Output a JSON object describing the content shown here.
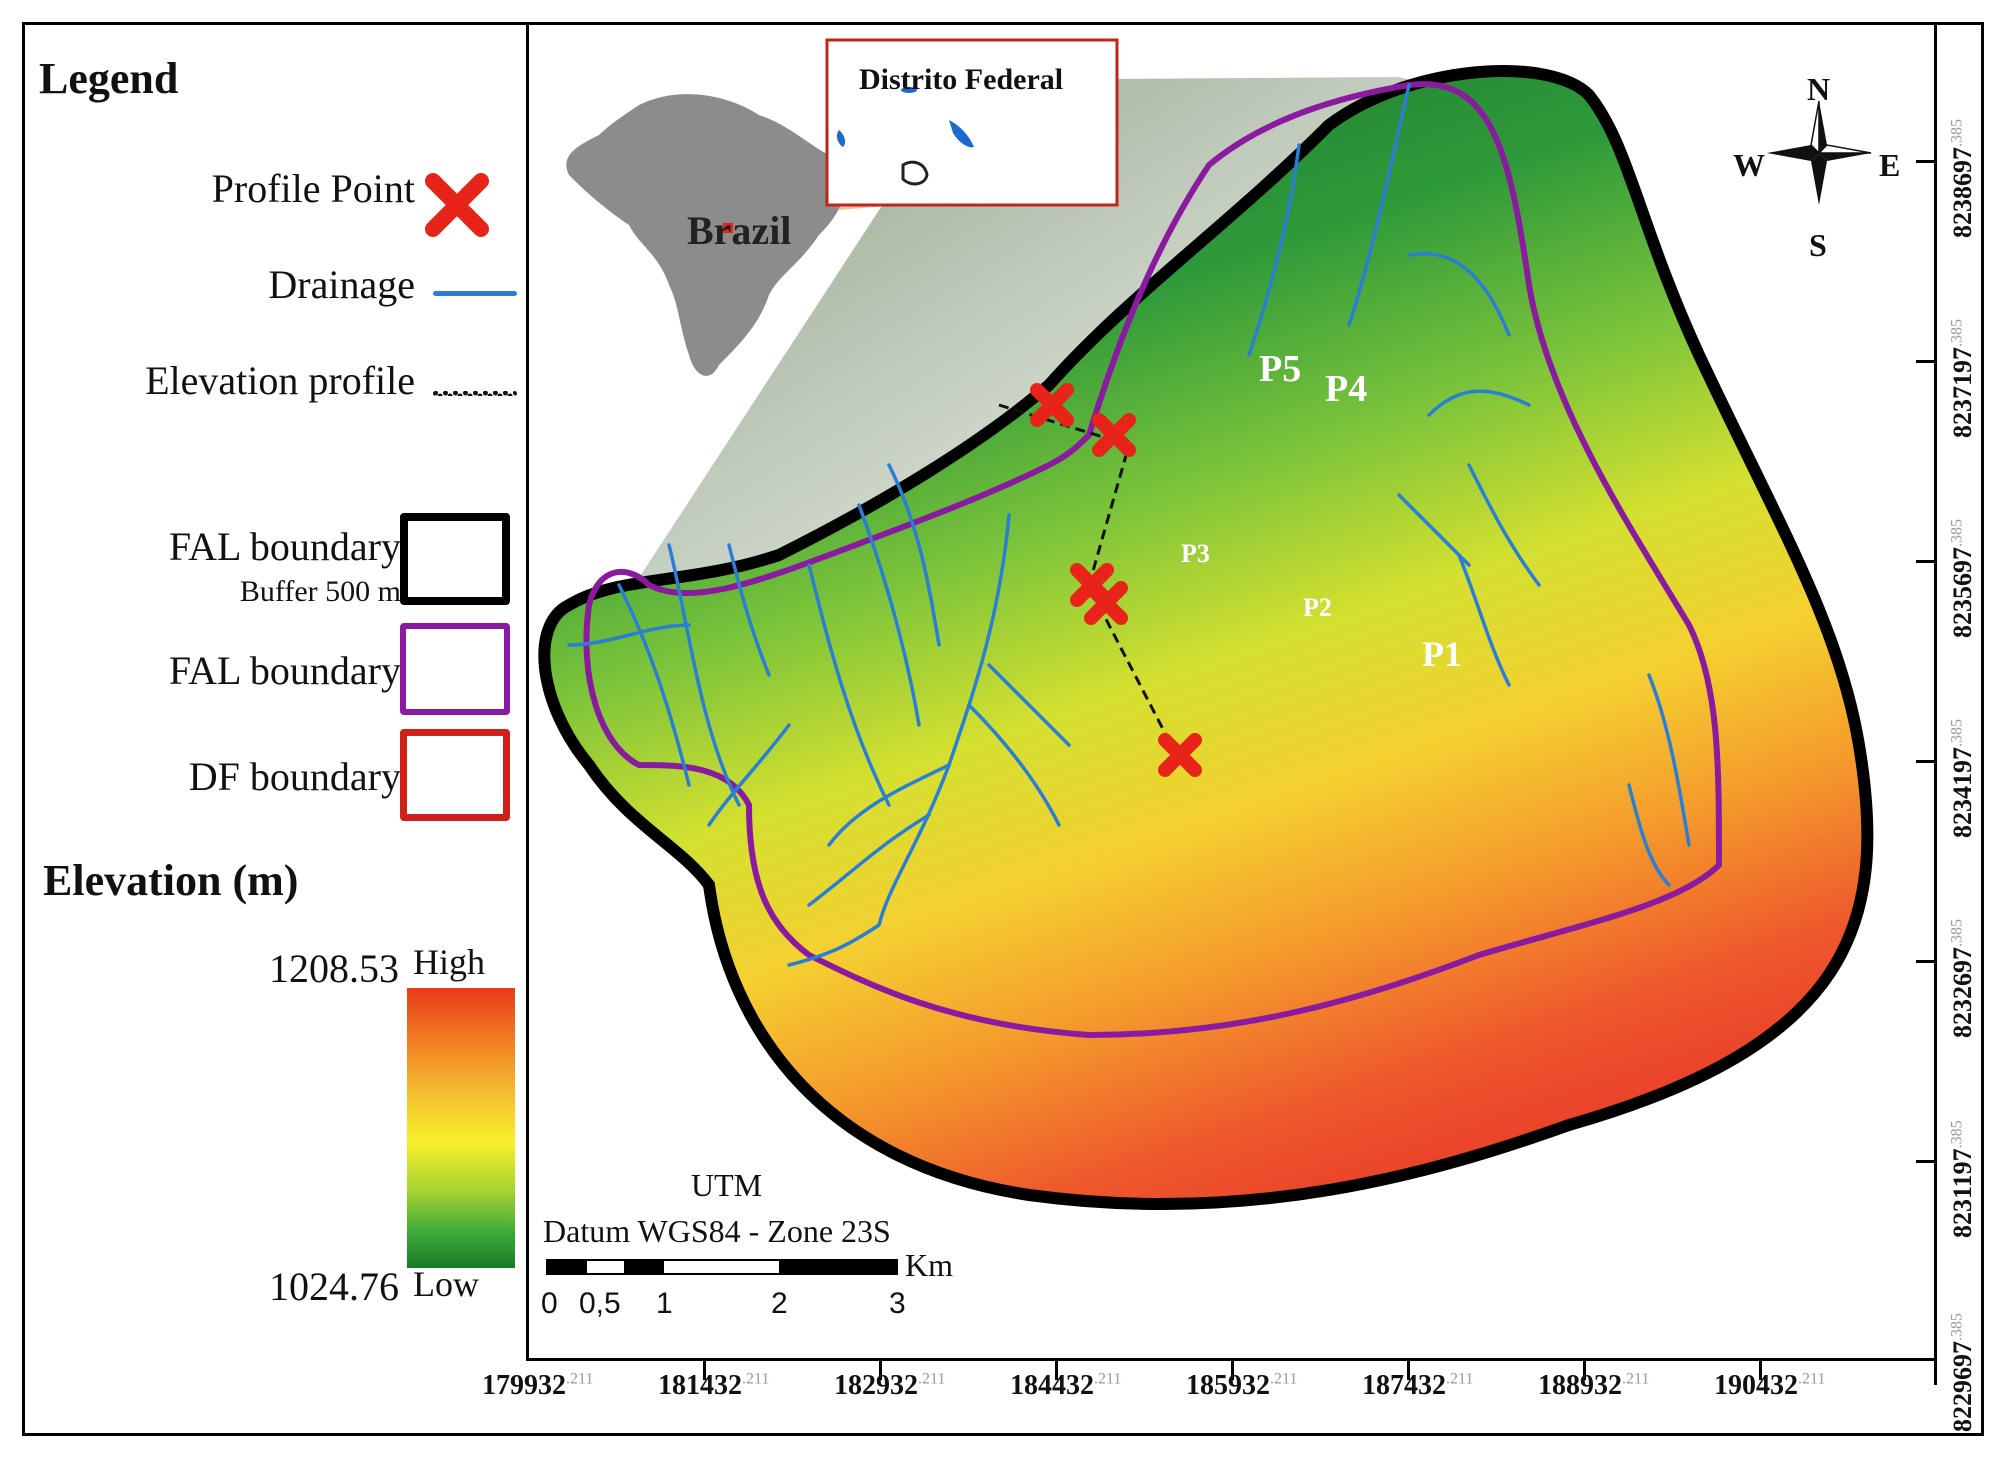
{
  "legend": {
    "title": "Legend",
    "items": [
      {
        "label": "Profile Point",
        "symbol": "x-marker",
        "color": "#e8241a"
      },
      {
        "label": "Drainage",
        "symbol": "line",
        "color": "#2a7fd4"
      },
      {
        "label": "Elevation profile",
        "symbol": "dotted-line",
        "color": "#111111"
      },
      {
        "label": "FAL boundary",
        "sublabel": "Buffer 500 m",
        "symbol": "box",
        "color": "#000000"
      },
      {
        "label": "FAL boundary",
        "symbol": "box",
        "color": "#8a1aa0"
      },
      {
        "label": "DF boundary",
        "symbol": "box",
        "color": "#d0201a"
      }
    ]
  },
  "elevation": {
    "title": "Elevation (m)",
    "high_value": "1208.53",
    "high_label": "High",
    "low_value": "1024.76",
    "low_label": "Low"
  },
  "inset": {
    "country_label": "Brazil",
    "region_label": "Distrito Federal"
  },
  "compass": {
    "n": "N",
    "s": "S",
    "e": "E",
    "w": "W"
  },
  "profile_points": [
    "P1",
    "P2",
    "P3",
    "P4",
    "P5"
  ],
  "scale": {
    "title": "UTM",
    "datum": "Datum WGS84 - Zone 23S",
    "unit": "Km",
    "ticks": [
      "0",
      "0,5",
      "1",
      "2",
      "3"
    ]
  },
  "x_axis": {
    "labels": [
      "179932",
      "181432",
      "182932",
      "184432",
      "185932",
      "187432",
      "188932",
      "190432"
    ],
    "suffix": ".211"
  },
  "y_axis": {
    "labels": [
      "8238697",
      "8237197",
      "8235697",
      "8234197",
      "8232697",
      "8231197",
      "8229697"
    ],
    "suffix": ".385"
  }
}
